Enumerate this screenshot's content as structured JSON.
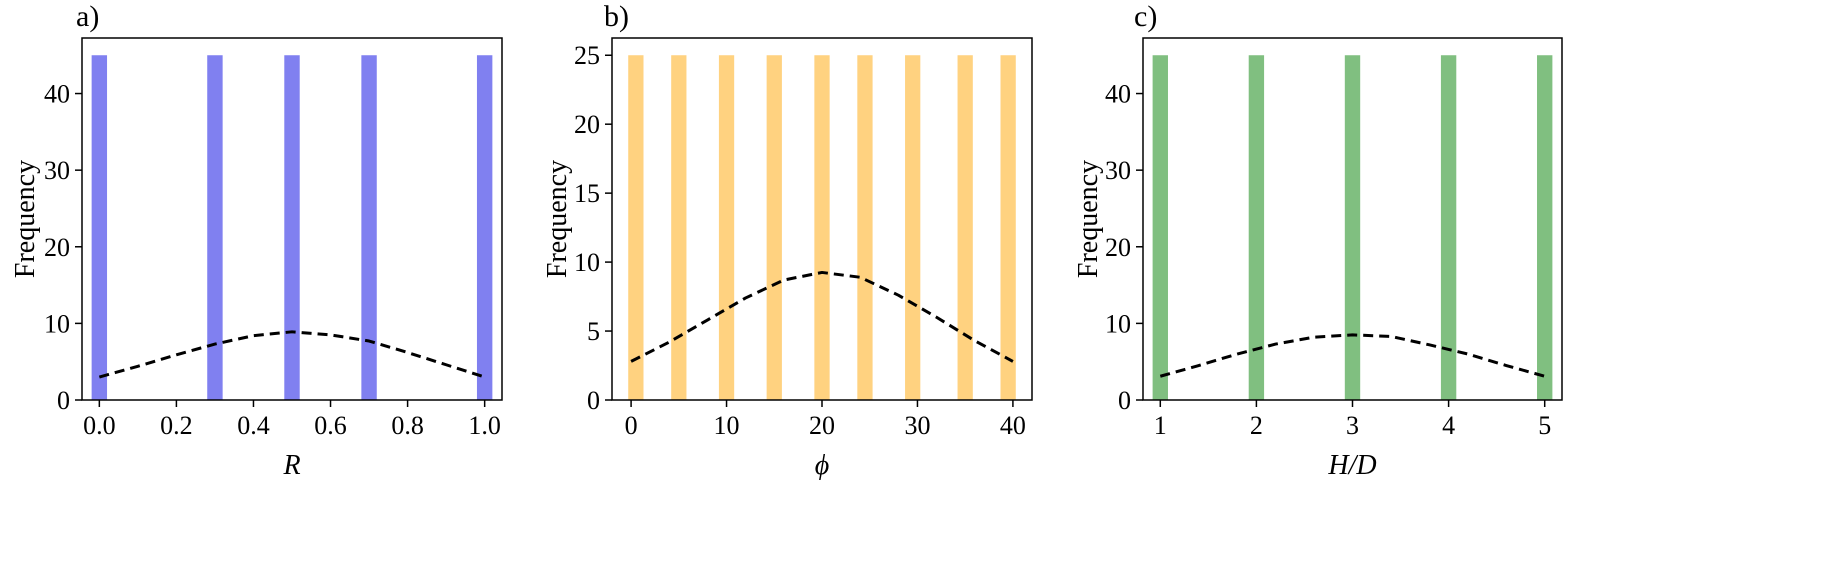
{
  "chart_data": [
    {
      "type": "bar",
      "panel_label": "a)",
      "title": "",
      "xlabel": "R",
      "ylabel": "Frequency",
      "xlim": [
        -0.045,
        1.045
      ],
      "ylim": [
        0,
        47.25
      ],
      "xticks": [
        0.0,
        0.2,
        0.4,
        0.6,
        0.8,
        1.0
      ],
      "xtick_labels": [
        "0.0",
        "0.2",
        "0.4",
        "0.6",
        "0.8",
        "1.0"
      ],
      "yticks": [
        0,
        10,
        20,
        30,
        40
      ],
      "ytick_labels": [
        "0",
        "10",
        "20",
        "30",
        "40"
      ],
      "bar_color": "#8080f0",
      "bar_width": 0.04,
      "bars": [
        {
          "x": 0.0,
          "value": 45
        },
        {
          "x": 0.3,
          "value": 45
        },
        {
          "x": 0.5,
          "value": 45
        },
        {
          "x": 0.7,
          "value": 45
        },
        {
          "x": 1.0,
          "value": 45
        }
      ],
      "curve": {
        "style": "dashed",
        "color": "#000000",
        "x": [
          0.0,
          0.1,
          0.2,
          0.3,
          0.4,
          0.5,
          0.6,
          0.7,
          0.8,
          0.9,
          1.0
        ],
        "y": [
          3.0,
          4.4,
          5.9,
          7.3,
          8.4,
          8.9,
          8.5,
          7.7,
          6.2,
          4.6,
          3.0
        ]
      },
      "grid": false
    },
    {
      "type": "bar",
      "panel_label": "b)",
      "title": "",
      "xlabel": "ϕ",
      "ylabel": "Frequency",
      "xlim": [
        -2,
        42
      ],
      "ylim": [
        0,
        26.25
      ],
      "xticks": [
        0,
        10,
        20,
        30,
        40
      ],
      "xtick_labels": [
        "0",
        "10",
        "20",
        "30",
        "40"
      ],
      "yticks": [
        0,
        5,
        10,
        15,
        20,
        25
      ],
      "ytick_labels": [
        "0",
        "5",
        "10",
        "15",
        "20",
        "25"
      ],
      "bar_color": "#ffd280",
      "bar_width": 1.6,
      "bars": [
        {
          "x": 0.5,
          "value": 25
        },
        {
          "x": 5,
          "value": 25
        },
        {
          "x": 10,
          "value": 25
        },
        {
          "x": 15,
          "value": 25
        },
        {
          "x": 20,
          "value": 25
        },
        {
          "x": 24.5,
          "value": 25
        },
        {
          "x": 29.5,
          "value": 25
        },
        {
          "x": 35,
          "value": 25
        },
        {
          "x": 39.5,
          "value": 25
        }
      ],
      "curve": {
        "style": "dashed",
        "color": "#000000",
        "x": [
          0,
          4,
          8,
          12,
          16,
          20,
          24,
          28,
          32,
          36,
          40
        ],
        "y": [
          2.8,
          4.2,
          5.8,
          7.4,
          8.7,
          9.25,
          8.9,
          7.6,
          6.0,
          4.3,
          2.8
        ]
      },
      "grid": false
    },
    {
      "type": "bar",
      "panel_label": "c)",
      "title": "",
      "xlabel": "H/D",
      "ylabel": "Frequency",
      "xlim": [
        0.82,
        5.18
      ],
      "ylim": [
        0,
        47.25
      ],
      "xticks": [
        1,
        2,
        3,
        4,
        5
      ],
      "xtick_labels": [
        "1",
        "2",
        "3",
        "4",
        "5"
      ],
      "yticks": [
        0,
        10,
        20,
        30,
        40
      ],
      "ytick_labels": [
        "0",
        "10",
        "20",
        "30",
        "40"
      ],
      "bar_color": "#80bf80",
      "bar_width": 0.16,
      "bars": [
        {
          "x": 1,
          "value": 45
        },
        {
          "x": 2,
          "value": 45
        },
        {
          "x": 3,
          "value": 45
        },
        {
          "x": 4,
          "value": 45
        },
        {
          "x": 5,
          "value": 45
        }
      ],
      "curve": {
        "style": "dashed",
        "color": "#000000",
        "x": [
          1.0,
          1.4,
          1.8,
          2.2,
          2.6,
          3.0,
          3.4,
          3.8,
          4.2,
          4.6,
          5.0
        ],
        "y": [
          3.1,
          4.5,
          6.0,
          7.3,
          8.2,
          8.5,
          8.3,
          7.2,
          6.0,
          4.5,
          3.1
        ]
      },
      "grid": false
    }
  ]
}
